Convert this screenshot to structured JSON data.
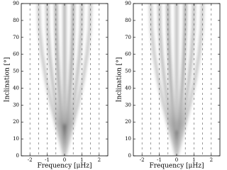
{
  "chart_data": [
    {
      "type": "ridge",
      "xlabel": "Frequency [μHz]",
      "ylabel": "Inclination [°]",
      "xlim": [
        -2.5,
        2.5
      ],
      "ylim": [
        0,
        90
      ],
      "xticks": [
        -2,
        -1,
        0,
        1,
        2
      ],
      "yticks": [
        0,
        10,
        20,
        30,
        40,
        50,
        60,
        70,
        80,
        90
      ],
      "vlines": [
        -2,
        -1.5,
        -1,
        -0.5,
        0.5,
        1,
        1.5,
        2
      ],
      "ridges": [
        {
          "color": "#888888",
          "x": [
            0,
            0,
            0,
            0,
            0,
            0,
            0
          ],
          "y": [
            0,
            15,
            30,
            45,
            60,
            75,
            90
          ]
        },
        {
          "color": "#000000",
          "x": [
            0,
            0,
            0
          ],
          "y": [
            0,
            8,
            18
          ]
        },
        {
          "color": "#777777",
          "x": [
            0,
            -0.13,
            -0.25,
            -0.35,
            -0.43,
            -0.48,
            -0.5
          ],
          "y": [
            0,
            15,
            30,
            45,
            60,
            75,
            90
          ]
        },
        {
          "color": "#777777",
          "x": [
            0,
            0.13,
            0.25,
            0.35,
            0.43,
            0.48,
            0.5
          ],
          "y": [
            0,
            15,
            30,
            45,
            60,
            75,
            90
          ]
        },
        {
          "color": "#999999",
          "x": [
            0,
            -0.26,
            -0.5,
            -0.71,
            -0.87,
            -0.97,
            -1
          ],
          "y": [
            0,
            15,
            30,
            45,
            60,
            75,
            90
          ]
        },
        {
          "color": "#999999",
          "x": [
            0,
            0.26,
            0.5,
            0.71,
            0.87,
            0.97,
            1
          ],
          "y": [
            0,
            15,
            30,
            45,
            60,
            75,
            90
          ]
        },
        {
          "color": "#aaaaaa",
          "x": [
            0,
            -0.39,
            -0.75,
            -1.06,
            -1.3,
            -1.45,
            -1.5
          ],
          "y": [
            0,
            15,
            30,
            45,
            60,
            75,
            90
          ]
        },
        {
          "color": "#aaaaaa",
          "x": [
            0,
            0.39,
            0.75,
            1.06,
            1.3,
            1.45,
            1.5
          ],
          "y": [
            0,
            15,
            30,
            45,
            60,
            75,
            90
          ]
        }
      ]
    },
    {
      "type": "ridge",
      "xlabel": "Frequency [μHz]",
      "ylabel": "Inclination [°]",
      "xlim": [
        -2.5,
        2.5
      ],
      "ylim": [
        0,
        90
      ],
      "xticks": [
        -2,
        -1,
        0,
        1,
        2
      ],
      "yticks": [
        0,
        10,
        20,
        30,
        40,
        50,
        60,
        70,
        80,
        90
      ],
      "vlines": [
        -2,
        -1.5,
        -1,
        -0.5,
        0.5,
        1,
        1.5,
        2
      ],
      "ridges": [
        {
          "color": "#999999",
          "x": [
            0,
            0,
            0,
            0,
            0,
            0,
            0
          ],
          "y": [
            0,
            15,
            30,
            45,
            60,
            75,
            90
          ]
        },
        {
          "color": "#000000",
          "x": [
            0,
            0,
            0
          ],
          "y": [
            0,
            6,
            14
          ]
        },
        {
          "color": "#777777",
          "x": [
            0,
            -0.13,
            -0.25,
            -0.35,
            -0.43,
            -0.48,
            -0.5
          ],
          "y": [
            0,
            15,
            30,
            45,
            60,
            75,
            90
          ]
        },
        {
          "color": "#777777",
          "x": [
            0,
            0.13,
            0.25,
            0.35,
            0.43,
            0.48,
            0.5
          ],
          "y": [
            0,
            15,
            30,
            45,
            60,
            75,
            90
          ]
        },
        {
          "color": "#999999",
          "x": [
            0,
            -0.26,
            -0.5,
            -0.71,
            -0.87,
            -0.97,
            -1
          ],
          "y": [
            0,
            15,
            30,
            45,
            60,
            75,
            90
          ]
        },
        {
          "color": "#999999",
          "x": [
            0,
            0.26,
            0.5,
            0.71,
            0.87,
            0.97,
            1
          ],
          "y": [
            0,
            15,
            30,
            45,
            60,
            75,
            90
          ]
        },
        {
          "color": "#aaaaaa",
          "x": [
            0,
            -0.39,
            -0.75,
            -1.06,
            -1.3,
            -1.45,
            -1.5
          ],
          "y": [
            0,
            15,
            30,
            45,
            60,
            75,
            90
          ]
        },
        {
          "color": "#aaaaaa",
          "x": [
            0,
            0.39,
            0.75,
            1.06,
            1.3,
            1.45,
            1.5
          ],
          "y": [
            0,
            15,
            30,
            45,
            60,
            75,
            90
          ]
        }
      ]
    }
  ]
}
